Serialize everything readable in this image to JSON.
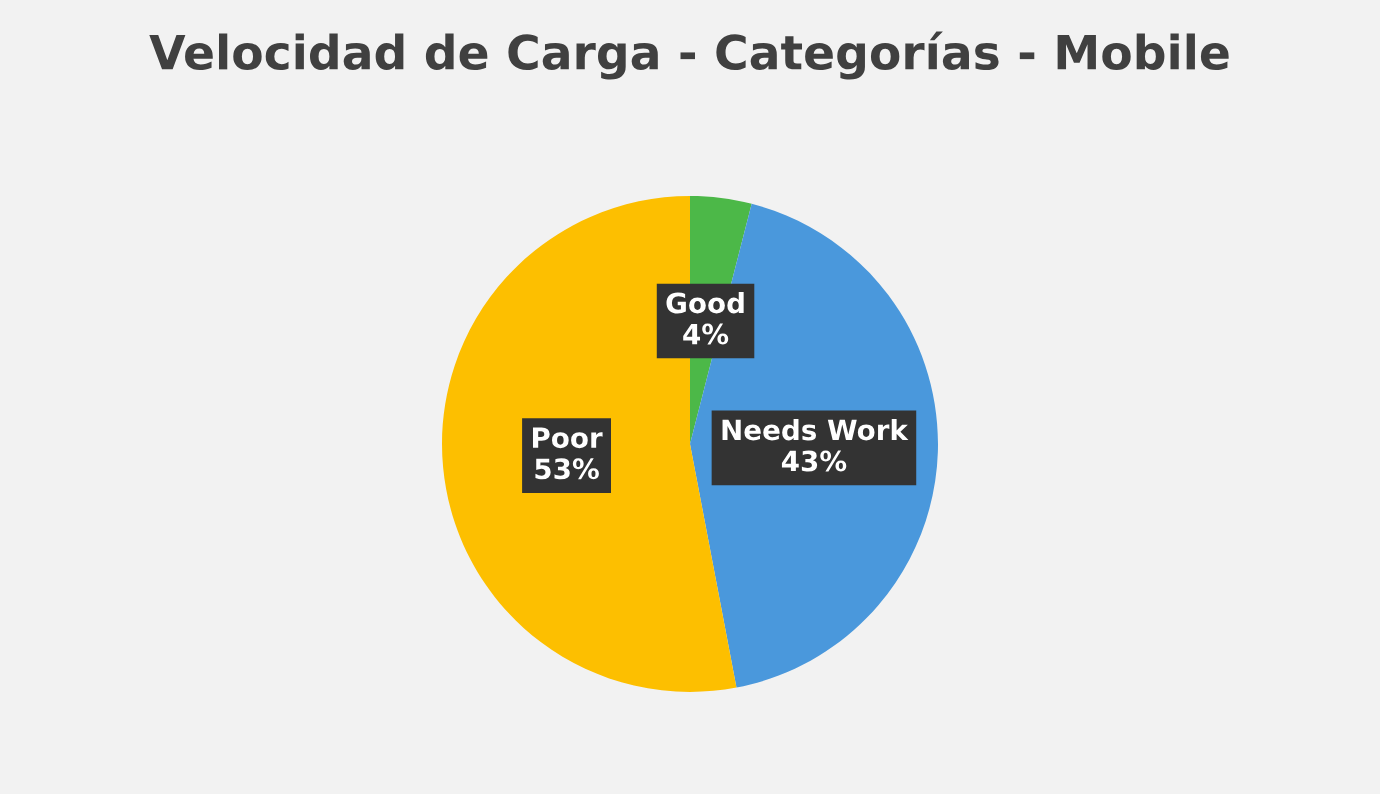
{
  "chart_data": {
    "type": "pie",
    "title": "Velocidad de Carga - Categorías - Mobile",
    "categories": [
      "Good",
      "Needs Work",
      "Poor"
    ],
    "values": [
      4,
      43,
      53
    ],
    "colors": [
      "#4cb848",
      "#4a98dc",
      "#fdbf00"
    ],
    "value_labels": [
      "4%",
      "43%",
      "53%"
    ],
    "legend": false
  }
}
